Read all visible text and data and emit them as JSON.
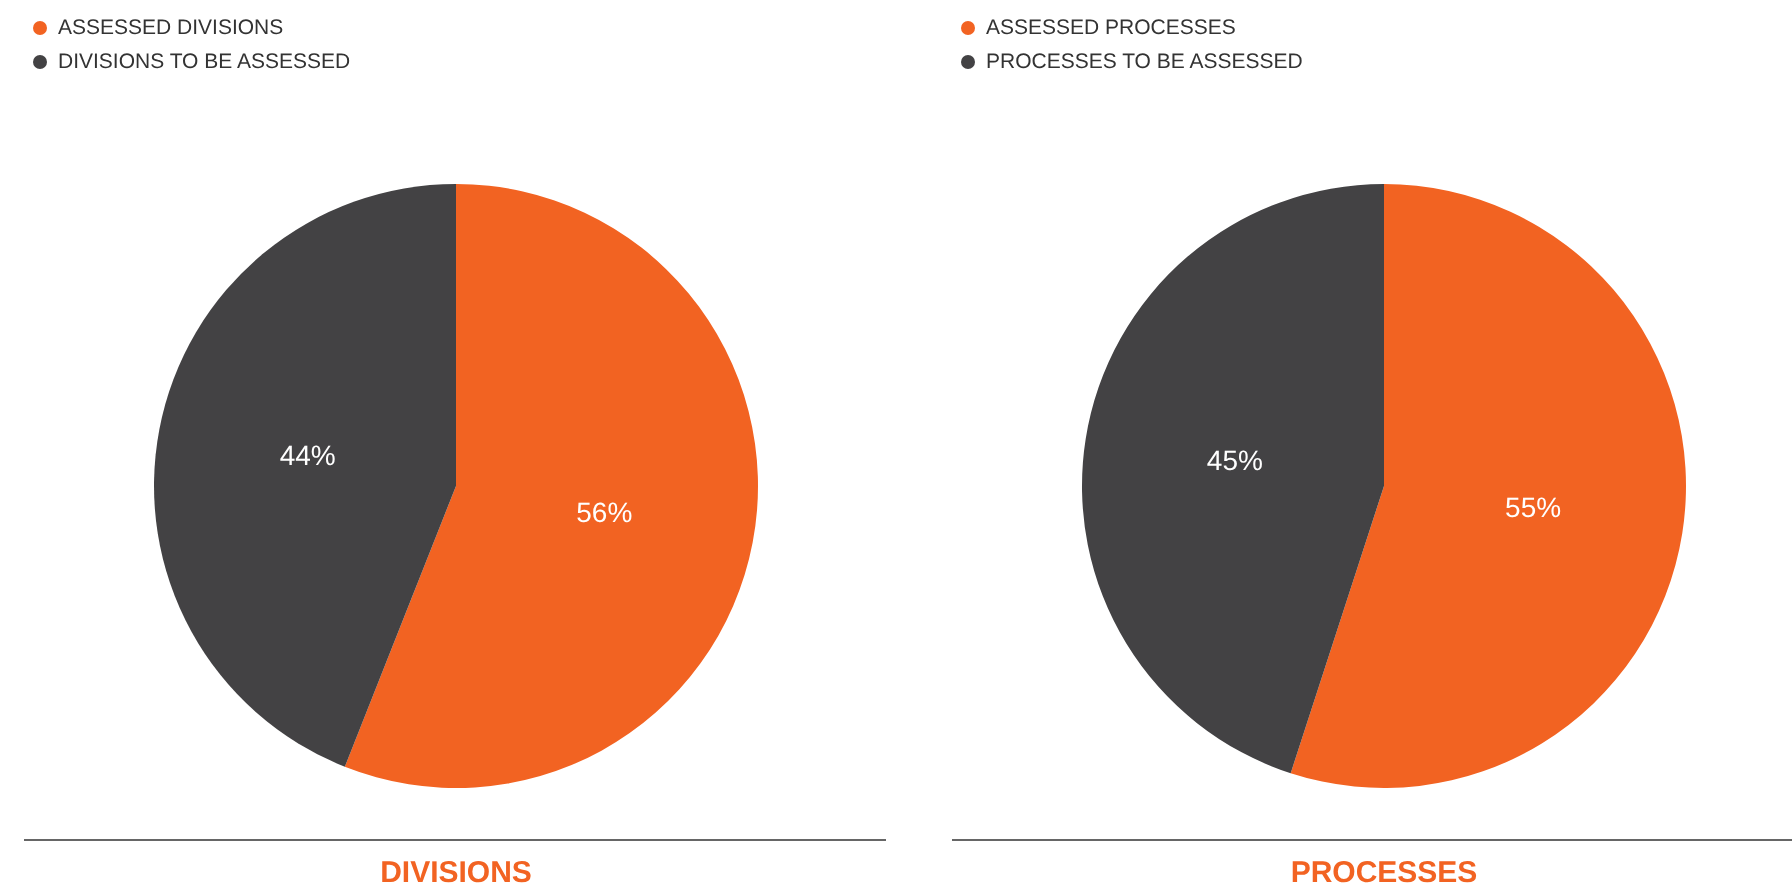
{
  "chart_data": [
    {
      "type": "pie",
      "title": "DIVISIONS",
      "categories": [
        "ASSESSED DIVISIONS",
        "DIVISIONS TO BE ASSESSED"
      ],
      "values": [
        56,
        44
      ],
      "value_labels": [
        "56%",
        "44%"
      ],
      "colors": [
        "#f26322",
        "#434244"
      ],
      "legend": "top left"
    },
    {
      "type": "pie",
      "title": "PROCESSES",
      "categories": [
        "ASSESSED PROCESSES",
        "PROCESSES TO BE ASSESSED"
      ],
      "values": [
        55,
        45
      ],
      "value_labels": [
        "55%",
        "45%"
      ],
      "colors": [
        "#f26322",
        "#434244"
      ],
      "legend": "top left"
    }
  ]
}
